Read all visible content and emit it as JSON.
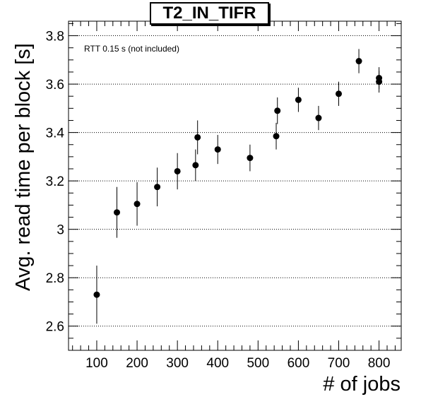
{
  "chart_data": {
    "type": "scatter",
    "title": "T2_IN_TIFR",
    "xlabel": "# of jobs",
    "ylabel": "Avg. read time per block [s]",
    "annotation": "RTT 0.15 s (not included)",
    "xlim": [
      30,
      855
    ],
    "ylim": [
      2.5,
      3.86
    ],
    "x_ticks": [
      100,
      200,
      300,
      400,
      500,
      600,
      700,
      800
    ],
    "y_ticks": [
      2.6,
      2.8,
      3,
      3.2,
      3.4,
      3.6,
      3.8
    ],
    "y_tick_labels": [
      "2.6",
      "2.8",
      "3",
      "3.2",
      "3.4",
      "3.6",
      "3.8"
    ],
    "grid": {
      "horizontal": true,
      "vertical": false,
      "style": "dotted"
    },
    "marker_color": "#000000",
    "points": [
      {
        "x": 100,
        "y": 2.73,
        "err": 0.12
      },
      {
        "x": 150,
        "y": 3.07,
        "err": 0.105
      },
      {
        "x": 200,
        "y": 3.105,
        "err": 0.09
      },
      {
        "x": 250,
        "y": 3.175,
        "err": 0.08
      },
      {
        "x": 300,
        "y": 3.24,
        "err": 0.075
      },
      {
        "x": 345,
        "y": 3.265,
        "err": 0.065
      },
      {
        "x": 350,
        "y": 3.38,
        "err": 0.07
      },
      {
        "x": 400,
        "y": 3.33,
        "err": 0.06
      },
      {
        "x": 480,
        "y": 3.295,
        "err": 0.055
      },
      {
        "x": 545,
        "y": 3.385,
        "err": 0.055
      },
      {
        "x": 548,
        "y": 3.49,
        "err": 0.055
      },
      {
        "x": 600,
        "y": 3.535,
        "err": 0.05
      },
      {
        "x": 650,
        "y": 3.46,
        "err": 0.05
      },
      {
        "x": 700,
        "y": 3.56,
        "err": 0.05
      },
      {
        "x": 750,
        "y": 3.695,
        "err": 0.05
      },
      {
        "x": 800,
        "y": 3.625,
        "err": 0.045
      },
      {
        "x": 800,
        "y": 3.61,
        "err": 0.045
      }
    ]
  }
}
